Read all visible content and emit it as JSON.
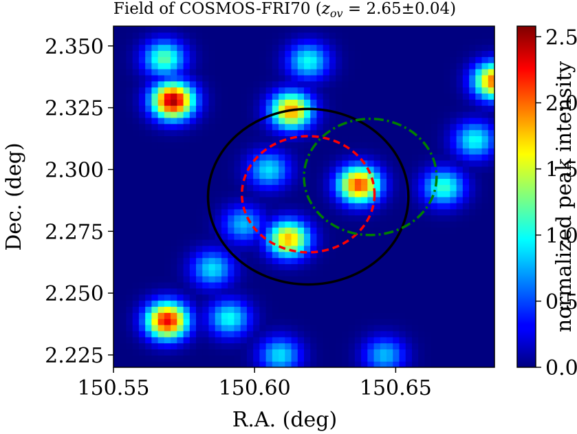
{
  "chart_data": {
    "type": "heatmap",
    "title_main": "Field of COSMOS-FRI70 (",
    "title_z": "z",
    "title_sub": "ov",
    "title_rest": " = 2.65±0.04)",
    "xlabel": "R.A. (deg)",
    "ylabel": "Dec. (deg)",
    "colorbar_label": "normalized peak intensity",
    "xlim": [
      150.55,
      150.685
    ],
    "ylim": [
      2.22,
      2.358
    ],
    "xticks": [
      150.55,
      150.6,
      150.65
    ],
    "xtick_labels": [
      "150.55",
      "150.60",
      "150.65"
    ],
    "yticks": [
      2.225,
      2.25,
      2.275,
      2.3,
      2.325,
      2.35
    ],
    "ytick_labels": [
      "2.225",
      "2.250",
      "2.275",
      "2.300",
      "2.325",
      "2.350"
    ],
    "colorbar_range": [
      0.0,
      2.58
    ],
    "colorbar_ticks": [
      0.0,
      0.5,
      1.0,
      1.5,
      2.0,
      2.5
    ],
    "colorbar_tick_labels": [
      "0.0",
      "0.5",
      "1.0",
      "1.5",
      "2.0",
      "2.5"
    ],
    "colormap": "jet",
    "peaks": [
      {
        "ra": 150.571,
        "dec": 2.328,
        "intensity": 2.5
      },
      {
        "ra": 150.568,
        "dec": 2.345,
        "intensity": 1.2
      },
      {
        "ra": 150.613,
        "dec": 2.324,
        "intensity": 1.9
      },
      {
        "ra": 150.619,
        "dec": 2.344,
        "intensity": 1.0
      },
      {
        "ra": 150.685,
        "dec": 2.336,
        "intensity": 2.0
      },
      {
        "ra": 150.678,
        "dec": 2.312,
        "intensity": 1.0
      },
      {
        "ra": 150.667,
        "dec": 2.293,
        "intensity": 1.1
      },
      {
        "ra": 150.637,
        "dec": 2.294,
        "intensity": 2.1
      },
      {
        "ra": 150.612,
        "dec": 2.272,
        "intensity": 1.8
      },
      {
        "ra": 150.605,
        "dec": 2.3,
        "intensity": 0.9
      },
      {
        "ra": 150.596,
        "dec": 2.278,
        "intensity": 0.8
      },
      {
        "ra": 150.585,
        "dec": 2.26,
        "intensity": 0.9
      },
      {
        "ra": 150.569,
        "dec": 2.239,
        "intensity": 2.3
      },
      {
        "ra": 150.591,
        "dec": 2.24,
        "intensity": 1.0
      },
      {
        "ra": 150.609,
        "dec": 2.225,
        "intensity": 0.9
      },
      {
        "ra": 150.646,
        "dec": 2.225,
        "intensity": 0.8
      }
    ],
    "circles": [
      {
        "style": "solid",
        "color": "#000000",
        "ra": 150.619,
        "dec": 2.289,
        "radius_deg": 0.0355
      },
      {
        "style": "dashed",
        "color": "#ff0000",
        "ra": 150.619,
        "dec": 2.29,
        "radius_deg": 0.0235
      },
      {
        "style": "dashdot",
        "color": "#008000",
        "ra": 150.641,
        "dec": 2.297,
        "radius_deg": 0.0235
      }
    ]
  }
}
